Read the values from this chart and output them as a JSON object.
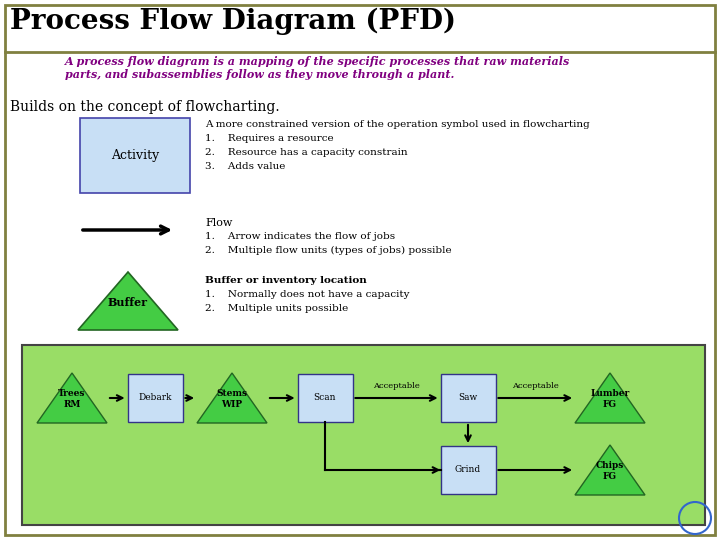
{
  "title": "Process Flow Diagram (PFD)",
  "title_color": "#000000",
  "subtitle": "A process flow diagram is a mapping of the specific processes that raw materials\nparts, and subassemblies follow as they move through a plant.",
  "subtitle_color": "#800080",
  "builds_text": "Builds on the concept of flowcharting.",
  "activity_label": "Activity",
  "activity_box_color": "#c8dff5",
  "activity_desc_line0": "A more constrained version of the operation symbol used in flowcharting",
  "activity_desc": [
    "1.    Requires a resource",
    "2.    Resource has a capacity constrain",
    "3.    Adds value"
  ],
  "flow_label": "Flow",
  "flow_desc": [
    "1.    Arrow indicates the flow of jobs",
    "2.    Multiple flow units (types of jobs) possible"
  ],
  "buffer_label": "Buffer",
  "buffer_desc_line0": "Buffer or inventory location",
  "buffer_desc": [
    "1.    Normally does not have a capacity",
    "2.    Multiple units possible"
  ],
  "triangle_color": "#44cc44",
  "triangle_edge_color": "#226622",
  "outer_border_color": "#808040",
  "pfd_bg_color": "#99dd66",
  "pfd_border_color": "#444444",
  "nodes": [
    {
      "id": "Trees",
      "label": "Trees\nRM",
      "type": "triangle"
    },
    {
      "id": "Debark",
      "label": "Debark",
      "type": "rect"
    },
    {
      "id": "Stems",
      "label": "Stems\nWIP",
      "type": "triangle"
    },
    {
      "id": "Scan",
      "label": "Scan",
      "type": "rect"
    },
    {
      "id": "Saw",
      "label": "Saw",
      "type": "rect"
    },
    {
      "id": "Lumber",
      "label": "Lumber\nFG",
      "type": "triangle"
    },
    {
      "id": "Grind",
      "label": "Grind",
      "type": "rect"
    },
    {
      "id": "Chips",
      "label": "Chips\nFG",
      "type": "triangle"
    }
  ]
}
